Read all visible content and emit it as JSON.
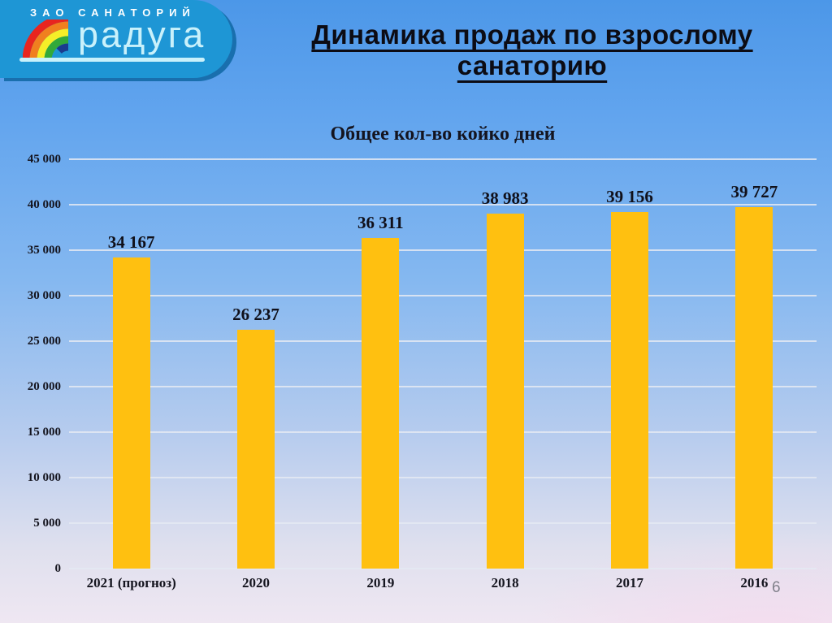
{
  "slide": {
    "title": "Динамика продаж по взрослому санаторию",
    "page_number": "6"
  },
  "logo": {
    "company": "ЗАО САНАТОРИЙ",
    "brand": "радуга",
    "icon": "rainbow-icon",
    "colors": {
      "box": "#1e96d5",
      "edge": "#196fae",
      "brand_text": "#c9f1fb"
    }
  },
  "chart_data": {
    "type": "bar",
    "title": "Общее кол-во койко дней",
    "categories": [
      "2021 (прогноз)",
      "2020",
      "2019",
      "2018",
      "2017",
      "2016"
    ],
    "values": [
      34167,
      26237,
      36311,
      38983,
      39156,
      39727
    ],
    "value_labels": [
      "34 167",
      "26 237",
      "36 311",
      "38 983",
      "39 156",
      "39 727"
    ],
    "xlabel": "",
    "ylabel": "",
    "ylim": [
      0,
      45000
    ],
    "ytick_step": 5000,
    "ytick_labels": [
      "0",
      "5 000",
      "10 000",
      "15 000",
      "20 000",
      "25 000",
      "30 000",
      "35 000",
      "40 000",
      "45 000"
    ],
    "grid": true,
    "legend": false,
    "bar_color": "#ffc010"
  }
}
